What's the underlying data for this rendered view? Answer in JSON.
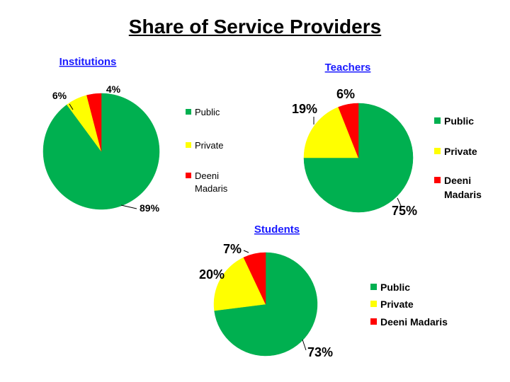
{
  "page": {
    "title": "Share of Service Providers"
  },
  "colors": {
    "Public": "#00b050",
    "Private": "#ffff00",
    "Deeni Madaris": "#ff0000"
  },
  "chart_data": [
    {
      "type": "pie",
      "title": "Institutions",
      "categories": [
        "Public",
        "Private",
        "Deeni Madaris"
      ],
      "values": [
        89,
        6,
        4
      ],
      "labels": [
        "89%",
        "6%",
        "4%"
      ],
      "legend": [
        "Public",
        "Private",
        "Deeni Madaris"
      ],
      "legend_placement": "right"
    },
    {
      "type": "pie",
      "title": "Teachers",
      "categories": [
        "Public",
        "Private",
        "Deeni Madaris"
      ],
      "values": [
        75,
        19,
        6
      ],
      "labels": [
        "75%",
        "19%",
        "6%"
      ],
      "legend": [
        "Public",
        "Private",
        "Deeni Madaris"
      ],
      "legend_placement": "right"
    },
    {
      "type": "pie",
      "title": "Students",
      "categories": [
        "Public",
        "Private",
        "Deeni Madaris"
      ],
      "values": [
        73,
        20,
        7
      ],
      "labels": [
        "73%",
        "20%",
        "7%"
      ],
      "legend": [
        "Public",
        "Private",
        "Deeni Madaris"
      ],
      "legend_placement": "right"
    }
  ]
}
